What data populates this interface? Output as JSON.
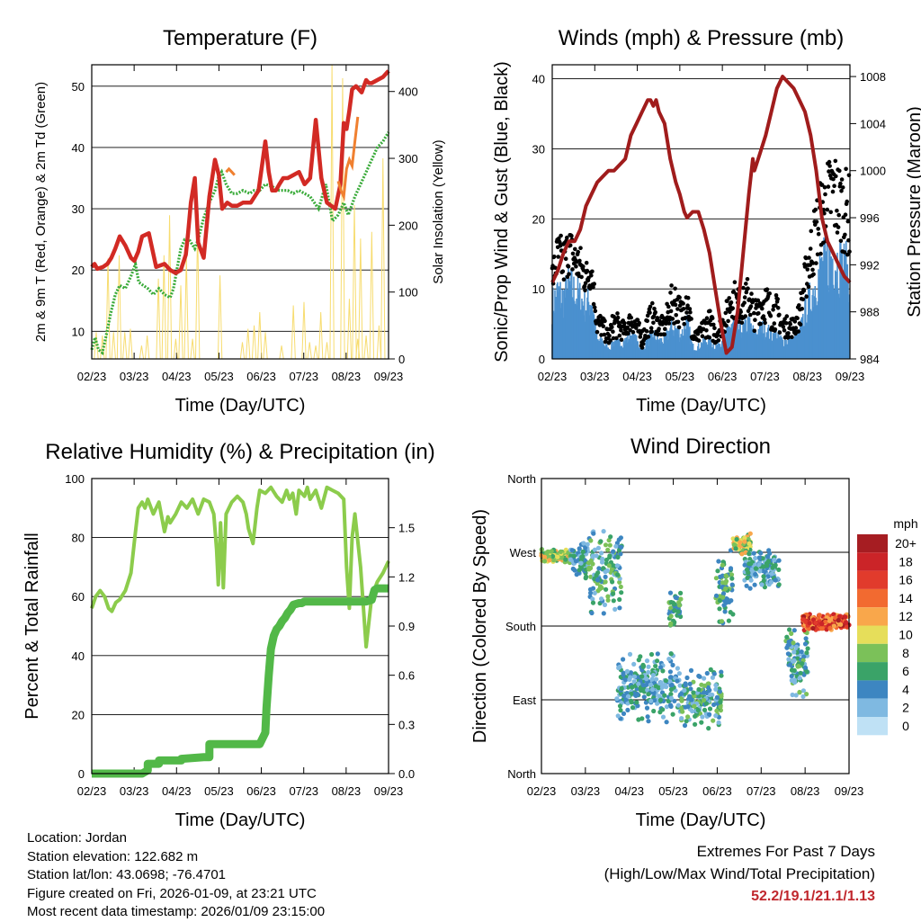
{
  "chart_data": [
    {
      "id": "temperature",
      "type": "line",
      "title": "Temperature (F)",
      "xlabel": "Time (Day/UTC)",
      "ylabel": "2m & 9m T (Red, Orange) & 2m Td (Green)",
      "ylabel_right": "Solar Insolation (Yellow)",
      "x_ticks": [
        "02/23",
        "03/23",
        "04/23",
        "05/23",
        "06/23",
        "07/23",
        "08/23",
        "09/23"
      ],
      "ylim": [
        5.5,
        53.5
      ],
      "y_ticks": [
        10,
        20,
        30,
        40,
        50
      ],
      "ylim_right": [
        0,
        440
      ],
      "y_ticks_right": [
        0,
        100,
        200,
        300,
        400
      ],
      "series": [
        {
          "name": "2m T",
          "color": "#d22a24",
          "x": [
            0,
            0.5,
            1,
            2,
            2.8,
            3.5,
            4.2,
            5,
            6,
            7,
            7.6,
            8.3,
            9,
            10.2,
            11.5,
            13,
            14,
            15,
            15.9,
            16.8,
            17.2,
            17.7,
            18.4,
            19,
            20,
            21,
            22,
            22.7,
            23.3,
            24.2,
            25,
            26,
            27,
            28.4,
            29.8,
            31,
            31.6,
            32.2,
            32.9,
            33.5,
            34.2,
            35,
            36,
            37,
            38,
            39,
            40,
            41,
            42,
            43.5,
            44.4,
            45,
            45.5,
            46,
            46.5,
            47.2,
            48.2,
            49,
            49.5,
            50,
            51,
            52,
            53
          ],
          "y": [
            20.5,
            21,
            20.2,
            20.5,
            21,
            22,
            23.5,
            25.5,
            24,
            22,
            21.5,
            23,
            25.5,
            26,
            20.5,
            21,
            20,
            19.5,
            20,
            22.5,
            26,
            31,
            35,
            24.5,
            22,
            32,
            38,
            35.5,
            30,
            31,
            30.5,
            30.5,
            31,
            31,
            33,
            41,
            36,
            33,
            33,
            34,
            35,
            35,
            35.5,
            36,
            34,
            35,
            44.5,
            35,
            31,
            30,
            34,
            44,
            43,
            46,
            49.5,
            50,
            49,
            51,
            50.5,
            50.5,
            51,
            51.5,
            52.5
          ]
        },
        {
          "name": "9m T",
          "color": "#f08030",
          "x": [
            24,
            24.5,
            25,
            25.5,
            44,
            44.5,
            45,
            45.5,
            46,
            46.5,
            47,
            47.5
          ],
          "y": [
            36,
            36.5,
            36,
            35.5,
            34.5,
            33,
            32,
            36.5,
            38,
            37,
            41,
            45
          ]
        },
        {
          "name": "2m Td",
          "color": "#3aab3a",
          "x": [
            0,
            0.6,
            1.2,
            1.9,
            2.5,
            3.4,
            4.2,
            5,
            6,
            7,
            7.8,
            8.4,
            9.2,
            10,
            11,
            12,
            13,
            14,
            14.6,
            15.2,
            15.9,
            16.6,
            17.4,
            18.4,
            19,
            20,
            21,
            22,
            22.6,
            23.2,
            24,
            25,
            26,
            27,
            28.2,
            29,
            30,
            31,
            32.5,
            33.5,
            35,
            36,
            37,
            38,
            39,
            40.5,
            41.8,
            43,
            44,
            45,
            45.8,
            46.2,
            47,
            48,
            49,
            50,
            51,
            52,
            53
          ],
          "y": [
            7,
            9,
            7,
            6.5,
            9,
            13,
            16,
            17.5,
            17,
            19,
            21,
            18,
            17.5,
            17,
            16,
            17,
            16,
            15.5,
            17,
            20,
            23.5,
            25,
            25,
            23.5,
            25,
            28.5,
            31,
            33,
            35,
            36,
            34,
            32.5,
            32.5,
            33,
            32.5,
            33,
            33,
            34,
            33.5,
            33,
            33,
            32.5,
            33,
            32.5,
            32,
            30,
            34,
            28,
            29,
            31,
            29,
            30,
            32,
            34,
            36,
            38,
            40,
            41,
            42.5
          ]
        }
      ],
      "solar_peaks": {
        "x": [
          0.8,
          1.9,
          2.9,
          3.9,
          4.9,
          5.9,
          6.9,
          8.9,
          9.9,
          11.9,
          12.9,
          13.9,
          15,
          15.9,
          16.9,
          18,
          18.9,
          22.9,
          26.9,
          27.9,
          29,
          30,
          31,
          33.9,
          36,
          37.9,
          38.9,
          40,
          40.9,
          42,
          42.9,
          44.8,
          46,
          46.9,
          47.5,
          48,
          49,
          50,
          51.3,
          52
        ],
        "v": [
          40,
          35,
          150,
          40,
          155,
          40,
          45,
          20,
          35,
          120,
          155,
          215,
          30,
          110,
          155,
          30,
          200,
          125,
          25,
          45,
          50,
          70,
          40,
          20,
          80,
          85,
          25,
          20,
          70,
          25,
          440,
          420,
          90,
          230,
          30,
          180,
          35,
          190,
          50,
          300
        ]
      }
    },
    {
      "id": "winds",
      "type": "scatter",
      "title": "Winds (mph) & Pressure (mb)",
      "xlabel": "Time (Day/UTC)",
      "ylabel": "Sonic/Prop Wind & Gust (Blue, Black)",
      "ylabel_right": "Station Pressure (Maroon)",
      "x_ticks": [
        "02/23",
        "03/23",
        "04/23",
        "05/23",
        "06/23",
        "07/23",
        "08/23",
        "09/23"
      ],
      "ylim": [
        0,
        42
      ],
      "y_ticks": [
        0,
        10,
        20,
        30,
        40
      ],
      "ylim_right": [
        984,
        1009
      ],
      "y_ticks_right": [
        984,
        988,
        992,
        996,
        1000,
        1004,
        1008
      ],
      "wind_envelope": {
        "x": [
          0,
          1,
          2,
          3,
          4,
          5,
          6,
          7,
          8,
          9,
          10,
          11,
          12,
          13,
          14,
          15,
          16,
          17,
          18,
          19,
          20,
          21,
          22,
          23,
          24,
          25,
          26,
          27,
          28,
          29,
          30,
          31,
          32,
          33,
          34,
          35,
          36,
          37,
          38,
          39,
          40,
          41,
          42,
          43,
          44,
          45,
          46,
          47,
          48,
          49,
          50,
          51,
          52,
          53
        ],
        "y": [
          9,
          11,
          10,
          12,
          11,
          10,
          9,
          10,
          3,
          3,
          1.5,
          3,
          2.5,
          3,
          4,
          3,
          1.5,
          3,
          4,
          3,
          3,
          5,
          5,
          4,
          6,
          2,
          2,
          3,
          3,
          2,
          3,
          4,
          6,
          5,
          5,
          6,
          4,
          5,
          5,
          4,
          4,
          3,
          3,
          3,
          4,
          8,
          10,
          13,
          15,
          16,
          17,
          16,
          15,
          14
        ],
        "gust": [
          14,
          18,
          17,
          19,
          17,
          16,
          14,
          15,
          7,
          6,
          4,
          7,
          6,
          5,
          7,
          6,
          4,
          7,
          8,
          6,
          6,
          10,
          11,
          8,
          12,
          4,
          4,
          6,
          7,
          5,
          6,
          8,
          12,
          10,
          10,
          12,
          8,
          10,
          11,
          9,
          9,
          6,
          6,
          6,
          8,
          14,
          19,
          23,
          26,
          28,
          30,
          28,
          27,
          26
        ]
      },
      "pressure": {
        "x": [
          0,
          1,
          2,
          3,
          4,
          5,
          6,
          7,
          8,
          9,
          10,
          11,
          12,
          13,
          14,
          15,
          16,
          17,
          17.5,
          18,
          18.5,
          19,
          20,
          21,
          22,
          22.7,
          23.5,
          24,
          25,
          26,
          27,
          28,
          29,
          30,
          31,
          32,
          33,
          34,
          35,
          35.7,
          36,
          37,
          38,
          39,
          40,
          41,
          42,
          43,
          44,
          45,
          46,
          47,
          48,
          49,
          50,
          51,
          52,
          53
        ],
        "y": [
          990.5,
          991.5,
          993,
          994,
          994,
          995,
          997,
          998,
          999,
          999.5,
          1000,
          1000,
          1000.5,
          1001,
          1003,
          1004,
          1005,
          1006,
          1006,
          1005.5,
          1006,
          1005,
          1004,
          1001,
          999,
          998,
          996.5,
          996,
          996.5,
          996.5,
          995,
          993,
          990,
          987,
          984.5,
          985,
          988,
          993,
          998,
          1001,
          1000,
          1001.5,
          1003,
          1005,
          1007,
          1008,
          1007.5,
          1007,
          1006,
          1005,
          1003,
          1000,
          996,
          994,
          993,
          992,
          991,
          990.5
        ]
      }
    },
    {
      "id": "humidity",
      "type": "line",
      "title": "Relative Humidity (%) & Precipitation (in)",
      "xlabel": "Time (Day/UTC)",
      "ylabel": "Percent & Total Rainfall",
      "x_ticks": [
        "02/23",
        "03/23",
        "04/23",
        "05/23",
        "06/23",
        "07/23",
        "08/23",
        "09/23"
      ],
      "ylim": [
        0,
        100
      ],
      "y_ticks": [
        0,
        20,
        40,
        60,
        80,
        100
      ],
      "ylim_right": [
        0,
        1.8
      ],
      "y_ticks_right": [
        "0.0",
        "0.3",
        "0.6",
        "0.9",
        "1.2",
        "1.5"
      ],
      "series": [
        {
          "name": "Relative Humidity",
          "color": "#8ccc4c",
          "x": [
            0,
            0.7,
            1.5,
            2.3,
            3,
            3.6,
            4.3,
            5,
            6,
            7,
            7.7,
            8.3,
            9,
            9.5,
            10,
            11,
            12,
            13,
            13.6,
            14,
            15,
            16,
            17,
            18,
            19,
            20,
            21,
            21.8,
            22.3,
            22.6,
            23,
            23.5,
            24,
            25,
            26,
            27,
            27.6,
            28,
            28.8,
            29.5,
            30,
            31,
            32,
            33,
            34,
            34.8,
            35.3,
            35.9,
            36.5,
            37,
            38,
            38.5,
            39,
            40,
            41,
            42,
            43,
            44,
            45,
            45.5,
            46,
            46.5,
            47,
            48,
            49,
            50,
            51,
            52,
            53
          ],
          "y": [
            56,
            60,
            62,
            60,
            56,
            55,
            58,
            59,
            62,
            68,
            80,
            90,
            92,
            90,
            93,
            88,
            92,
            82,
            87,
            85,
            88,
            92,
            90,
            93,
            88,
            93,
            92,
            88,
            76,
            64,
            85,
            63,
            88,
            92,
            94,
            92,
            88,
            83,
            78,
            90,
            96,
            95,
            97,
            94,
            92,
            96,
            93,
            95,
            88,
            96,
            94,
            97,
            93,
            96,
            90,
            97,
            96,
            95,
            93,
            70,
            56,
            80,
            88,
            70,
            43,
            60,
            65,
            68,
            72
          ]
        },
        {
          "name": "Total Precipitation",
          "color": "#52b848",
          "x": [
            0,
            5,
            9,
            10,
            10,
            12,
            12,
            16,
            16,
            20,
            21,
            21,
            25,
            30,
            31,
            31.2,
            31.6,
            32,
            32.5,
            33,
            33.5,
            34,
            34.5,
            35,
            35.5,
            36,
            37,
            37.5,
            38,
            39,
            40,
            42,
            44,
            46,
            48,
            49,
            50,
            50.5,
            51,
            53
          ],
          "y": [
            0,
            0,
            0,
            0.02,
            0.06,
            0.06,
            0.08,
            0.08,
            0.09,
            0.1,
            0.1,
            0.18,
            0.18,
            0.18,
            0.25,
            0.4,
            0.6,
            0.76,
            0.84,
            0.88,
            0.9,
            0.93,
            0.95,
            0.98,
            1.0,
            1.03,
            1.04,
            1.04,
            1.05,
            1.05,
            1.05,
            1.05,
            1.05,
            1.05,
            1.05,
            1.05,
            1.06,
            1.12,
            1.13,
            1.13
          ]
        }
      ]
    },
    {
      "id": "direction",
      "type": "scatter",
      "title": "Wind Direction",
      "xlabel": "Time (Day/UTC)",
      "ylabel": "Direction (Colored By Speed)",
      "x_ticks": [
        "02/23",
        "03/23",
        "04/23",
        "05/23",
        "06/23",
        "07/23",
        "08/23",
        "09/23"
      ],
      "y_ticks": [
        "North",
        "East",
        "South",
        "West",
        "North"
      ],
      "colorbar": {
        "unit": "mph",
        "labels": [
          "20+",
          "18",
          "16",
          "14",
          "12",
          "10",
          "8",
          "6",
          "4",
          "2",
          "0"
        ],
        "colors": [
          "#a61d22",
          "#cb2428",
          "#e13b2c",
          "#f26a30",
          "#f9a74b",
          "#e6de5a",
          "#7bc159",
          "#3aa368",
          "#3d86c1",
          "#7fb9e1",
          "#bfe1f5"
        ]
      },
      "clusters": [
        {
          "x0": 0,
          "x1": 5,
          "dir": 265,
          "spread": 10,
          "speeds": [
            8,
            10,
            12,
            6,
            8
          ]
        },
        {
          "x0": 5,
          "x1": 8,
          "dir": 260,
          "spread": 25,
          "speeds": [
            2,
            4,
            6
          ]
        },
        {
          "x0": 8,
          "x1": 14,
          "dir": 250,
          "spread": 60,
          "speeds": [
            2,
            4,
            6,
            8
          ]
        },
        {
          "x0": 13,
          "x1": 24,
          "dir": 105,
          "spread": 45,
          "speeds": [
            2,
            4,
            6
          ]
        },
        {
          "x0": 22,
          "x1": 24,
          "dir": 200,
          "spread": 25,
          "speeds": [
            6,
            8,
            4
          ]
        },
        {
          "x0": 24,
          "x1": 31,
          "dir": 90,
          "spread": 40,
          "speeds": [
            2,
            4,
            6,
            8
          ]
        },
        {
          "x0": 30,
          "x1": 33,
          "dir": 225,
          "spread": 50,
          "speeds": [
            4,
            6,
            8
          ]
        },
        {
          "x0": 33,
          "x1": 36,
          "dir": 280,
          "spread": 15,
          "speeds": [
            6,
            8,
            10,
            12
          ]
        },
        {
          "x0": 35,
          "x1": 41,
          "dir": 250,
          "spread": 25,
          "speeds": [
            2,
            4,
            6
          ]
        },
        {
          "x0": 42,
          "x1": 46,
          "dir": 130,
          "spread": 55,
          "speeds": [
            2,
            4,
            6,
            8
          ]
        },
        {
          "x0": 45,
          "x1": 53,
          "dir": 185,
          "spread": 12,
          "speeds": [
            12,
            14,
            16,
            18,
            20
          ]
        }
      ]
    }
  ],
  "station": {
    "location": "Location: Jordan",
    "elevation": "Station elevation: 122.682 m",
    "latlon": "Station lat/lon: 43.0698; -76.4701",
    "created": "Figure created on Fri, 2026-01-09, at 23:21 UTC",
    "recent": "Most recent data timestamp: 2026/01/09 23:15:00"
  },
  "extremes": {
    "title": "Extremes For Past 7 Days",
    "subtitle": "(High/Low/Max Wind/Total Precipitation)",
    "values": "52.2/19.1/21.1/1.13"
  }
}
